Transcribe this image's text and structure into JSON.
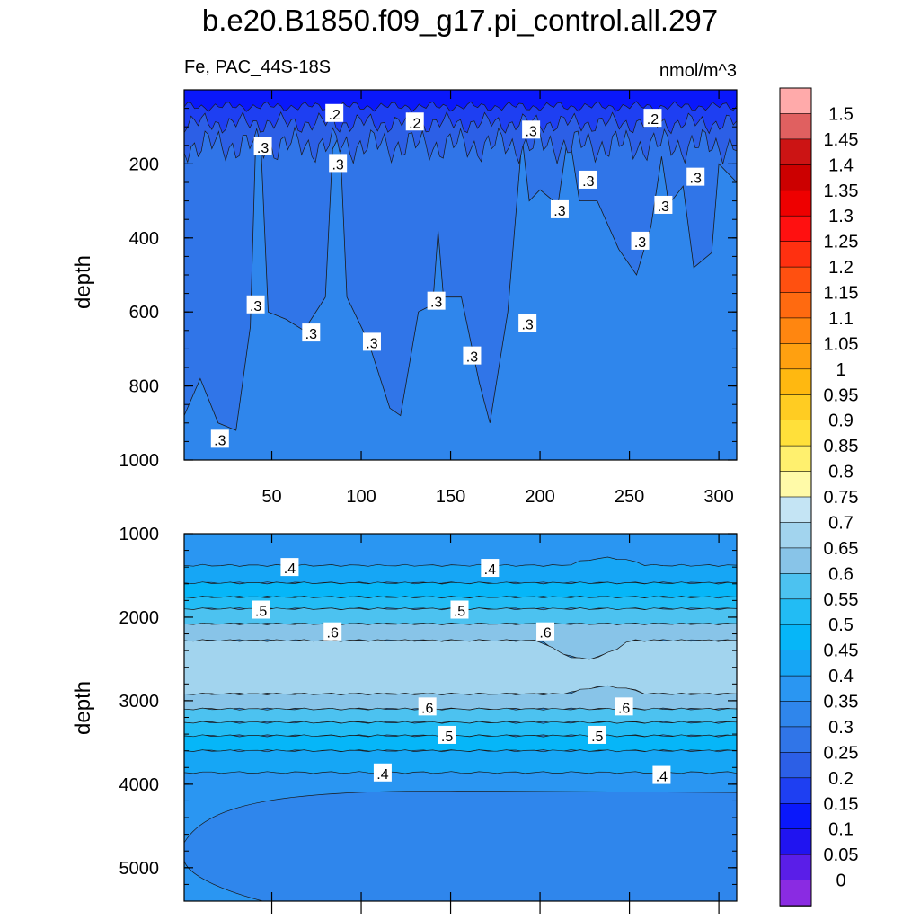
{
  "colors": {
    "fill_levels": [
      "#8a2be2",
      "#5a1ee8",
      "#2014f0",
      "#0a18fb",
      "#1e3ff2",
      "#2c5fe6",
      "#3075e8",
      "#2f86ec",
      "#2a96f2",
      "#16a6f5",
      "#06b6f8",
      "#22bcf4",
      "#4cc2f0",
      "#88c4e8",
      "#a2d4ee",
      "#c4e4f4",
      "#fffaa8",
      "#fff06e",
      "#ffe03a",
      "#ffcc22",
      "#ffb810",
      "#ffa010",
      "#ff8610",
      "#ff6a10",
      "#ff5010",
      "#ff3010",
      "#ff1010",
      "#ee0000",
      "#cc0000",
      "#cc1414",
      "#e06060",
      "#ffaaaa"
    ],
    "line": "#1a1a1a"
  },
  "chart_data": [
    {
      "type": "contour",
      "title": "b.e20.B1850.f09_g17.pi_control.all.297",
      "subtitle_left": "Fe, PAC_44S-18S",
      "subtitle_right": "nmol/m^3",
      "ylabel": "depth",
      "xlim": [
        1,
        310
      ],
      "ylim": [
        1000,
        0
      ],
      "x_ticks": [
        50,
        100,
        150,
        200,
        250,
        300
      ],
      "y_ticks": [
        200,
        400,
        600,
        800,
        1000
      ],
      "contour_labels": [
        {
          "text": ".2",
          "x": 85,
          "y": 65
        },
        {
          "text": ".2",
          "x": 130,
          "y": 88
        },
        {
          "text": ".2",
          "x": 263,
          "y": 78
        },
        {
          "text": ".3",
          "x": 195,
          "y": 110
        },
        {
          "text": ".3",
          "x": 45,
          "y": 155
        },
        {
          "text": ".3",
          "x": 87,
          "y": 200
        },
        {
          "text": ".3",
          "x": 227,
          "y": 245
        },
        {
          "text": ".3",
          "x": 287,
          "y": 237
        },
        {
          "text": ".3",
          "x": 269,
          "y": 313
        },
        {
          "text": ".3",
          "x": 211,
          "y": 325
        },
        {
          "text": ".3",
          "x": 256,
          "y": 410
        },
        {
          "text": ".3",
          "x": 41,
          "y": 582
        },
        {
          "text": ".3",
          "x": 142,
          "y": 572
        },
        {
          "text": ".3",
          "x": 193,
          "y": 632
        },
        {
          "text": ".3",
          "x": 72,
          "y": 658
        },
        {
          "text": ".3",
          "x": 106,
          "y": 683
        },
        {
          "text": ".3",
          "x": 162,
          "y": 720
        },
        {
          "text": ".3",
          "x": 21,
          "y": 945
        }
      ]
    },
    {
      "type": "contour",
      "ylabel": "depth",
      "xlim": [
        1,
        310
      ],
      "ylim": [
        5400,
        1000
      ],
      "y_ticks": [
        1000,
        2000,
        3000,
        4000,
        5000
      ],
      "contour_labels": [
        {
          "text": ".4",
          "x": 60,
          "y": 1410
        },
        {
          "text": ".4",
          "x": 172,
          "y": 1420
        },
        {
          "text": ".5",
          "x": 44,
          "y": 1920
        },
        {
          "text": ".5",
          "x": 155,
          "y": 1920
        },
        {
          "text": ".6",
          "x": 84,
          "y": 2180
        },
        {
          "text": ".6",
          "x": 203,
          "y": 2180
        },
        {
          "text": ".6",
          "x": 137,
          "y": 3080
        },
        {
          "text": ".6",
          "x": 247,
          "y": 3080
        },
        {
          "text": ".5",
          "x": 148,
          "y": 3420
        },
        {
          "text": ".5",
          "x": 232,
          "y": 3420
        },
        {
          "text": ".4",
          "x": 112,
          "y": 3870
        },
        {
          "text": ".4",
          "x": 268,
          "y": 3900
        }
      ]
    },
    {
      "type": "colorbar",
      "labels": [
        "1.5",
        "1.45",
        "1.4",
        "1.35",
        "1.3",
        "1.25",
        "1.2",
        "1.15",
        "1.1",
        "1.05",
        "1",
        "0.95",
        "0.9",
        "0.85",
        "0.8",
        "0.75",
        "0.7",
        "0.65",
        "0.6",
        "0.55",
        "0.5",
        "0.45",
        "0.4",
        "0.35",
        "0.3",
        "0.25",
        "0.2",
        "0.15",
        "0.1",
        "0.05",
        "0"
      ]
    }
  ]
}
